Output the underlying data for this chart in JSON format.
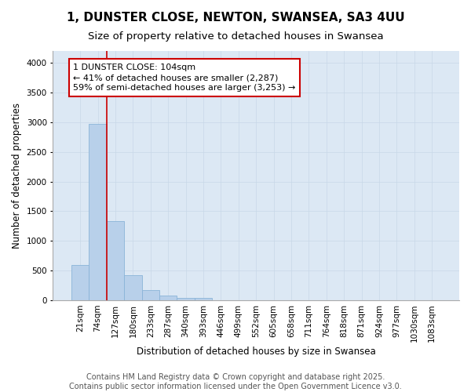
{
  "title": "1, DUNSTER CLOSE, NEWTON, SWANSEA, SA3 4UU",
  "subtitle": "Size of property relative to detached houses in Swansea",
  "xlabel": "Distribution of detached houses by size in Swansea",
  "ylabel": "Number of detached properties",
  "categories": [
    "21sqm",
    "74sqm",
    "127sqm",
    "180sqm",
    "233sqm",
    "287sqm",
    "340sqm",
    "393sqm",
    "446sqm",
    "499sqm",
    "552sqm",
    "605sqm",
    "658sqm",
    "711sqm",
    "764sqm",
    "818sqm",
    "871sqm",
    "924sqm",
    "977sqm",
    "1030sqm",
    "1083sqm"
  ],
  "values": [
    590,
    2970,
    1330,
    420,
    170,
    80,
    40,
    40,
    0,
    0,
    0,
    0,
    0,
    0,
    0,
    0,
    0,
    0,
    0,
    0,
    0
  ],
  "bar_color": "#b8d0ea",
  "bar_edge_color": "#8ab4d8",
  "annotation_line0": "1 DUNSTER CLOSE: 104sqm",
  "annotation_line1": "← 41% of detached houses are smaller (2,287)",
  "annotation_line2": "59% of semi-detached houses are larger (3,253) →",
  "annotation_box_color": "#ffffff",
  "annotation_box_edge_color": "#cc0000",
  "vline_color": "#cc0000",
  "vline_x_index": 1.5,
  "ylim": [
    0,
    4200
  ],
  "yticks": [
    0,
    500,
    1000,
    1500,
    2000,
    2500,
    3000,
    3500,
    4000
  ],
  "grid_color": "#c8d8e8",
  "background_color": "#dce8f4",
  "footer_line1": "Contains HM Land Registry data © Crown copyright and database right 2025.",
  "footer_line2": "Contains public sector information licensed under the Open Government Licence v3.0.",
  "title_fontsize": 11,
  "subtitle_fontsize": 9.5,
  "axis_label_fontsize": 8.5,
  "tick_fontsize": 7.5,
  "annotation_fontsize": 8,
  "footer_fontsize": 7
}
